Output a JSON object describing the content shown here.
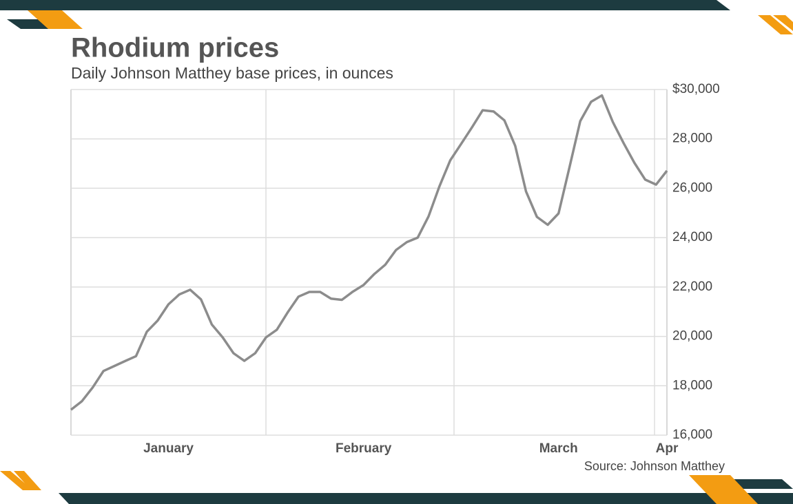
{
  "chart_data": {
    "type": "line",
    "title": "Rhodium prices",
    "subtitle": "Daily Johnson Matthey base prices, in ounces",
    "source": "Source: Johnson Matthey",
    "categories": [
      null,
      null,
      null,
      null,
      null,
      null,
      null,
      null,
      null,
      "January",
      null,
      null,
      null,
      null,
      null,
      null,
      null,
      null,
      null,
      null,
      null,
      null,
      null,
      null,
      null,
      null,
      null,
      "February",
      null,
      null,
      null,
      null,
      null,
      null,
      null,
      null,
      null,
      null,
      null,
      null,
      null,
      null,
      null,
      null,
      null,
      "March",
      null,
      null,
      null,
      null,
      null,
      null,
      null,
      null,
      null,
      "Apr"
    ],
    "series": [
      {
        "name": "Rhodium",
        "color": "#8c8c8c",
        "values": [
          17030,
          17370,
          17930,
          18600,
          18800,
          19000,
          19200,
          20190,
          20640,
          21300,
          21700,
          21890,
          21500,
          20480,
          19960,
          19320,
          19010,
          19320,
          19960,
          20270,
          20970,
          21610,
          21800,
          21800,
          21530,
          21480,
          21810,
          22080,
          22530,
          22900,
          23500,
          23820,
          24000,
          24860,
          26070,
          27130,
          27790,
          28460,
          29160,
          29110,
          28750,
          27720,
          25870,
          24840,
          24520,
          24980,
          26840,
          28720,
          29500,
          29760,
          28690,
          27830,
          27030,
          26350,
          26150,
          26710
        ]
      }
    ],
    "ylim": [
      16000,
      30000
    ],
    "yticks": [
      {
        "value": 16000,
        "label": "16,000"
      },
      {
        "value": 18000,
        "label": "18,000"
      },
      {
        "value": 20000,
        "label": "20,000"
      },
      {
        "value": 22000,
        "label": "22,000"
      },
      {
        "value": 24000,
        "label": "24,000"
      },
      {
        "value": 26000,
        "label": "26,000"
      },
      {
        "value": 28000,
        "label": "28,000"
      },
      {
        "value": 30000,
        "label": "$30,000"
      }
    ],
    "grid": true
  }
}
